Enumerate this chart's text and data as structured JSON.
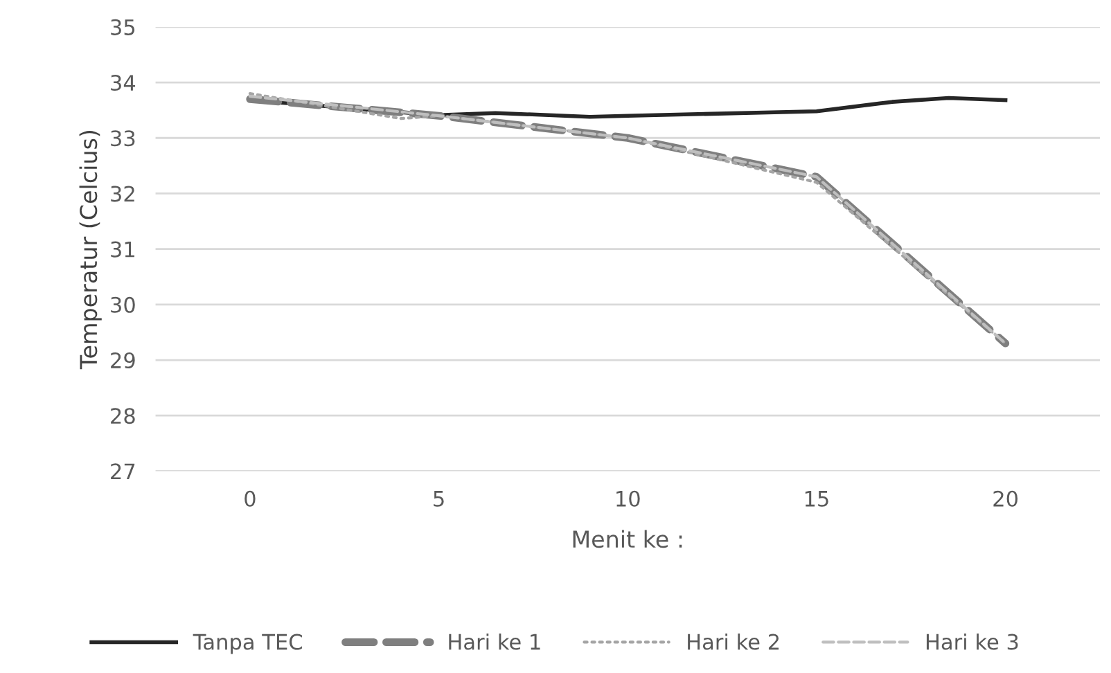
{
  "chart_data": {
    "type": "line",
    "xlabel": "Menit ke :",
    "ylabel": "Temperatur (Celcius)",
    "xlim": [
      -2.5,
      22.5
    ],
    "xticks": [
      0,
      5,
      10,
      15,
      20
    ],
    "ylim": [
      27,
      35
    ],
    "yticks": [
      27,
      28,
      29,
      30,
      31,
      32,
      33,
      34,
      35
    ],
    "grid": "y",
    "legend": "bottom",
    "marker": "none",
    "series": [
      {
        "name": "Tanpa TEC",
        "color": "#262626",
        "line_style": "solid",
        "x": [
          0,
          5,
          6.5,
          9,
          10,
          15,
          17,
          18.5,
          20
        ],
        "values": [
          33.68,
          33.41,
          33.45,
          33.38,
          33.4,
          33.48,
          33.65,
          33.72,
          33.68
        ]
      },
      {
        "name": "Hari ke 1",
        "color": "#7f7f7f",
        "line_style": "dashed",
        "x": [
          0,
          5,
          10,
          15,
          20
        ],
        "values": [
          33.7,
          33.4,
          33.0,
          32.3,
          29.3
        ]
      },
      {
        "name": "Hari ke 2",
        "color": "#a5a5a5",
        "line_style": "dotted",
        "x": [
          0,
          4,
          5,
          10,
          15,
          20
        ],
        "values": [
          33.8,
          33.35,
          33.4,
          33.0,
          32.2,
          29.3
        ]
      },
      {
        "name": "Hari ke 3",
        "color": "#bfbfbf",
        "line_style": "dashed",
        "x": [
          0,
          5,
          10,
          15,
          20
        ],
        "values": [
          33.75,
          33.4,
          33.0,
          32.3,
          29.3
        ]
      }
    ]
  }
}
